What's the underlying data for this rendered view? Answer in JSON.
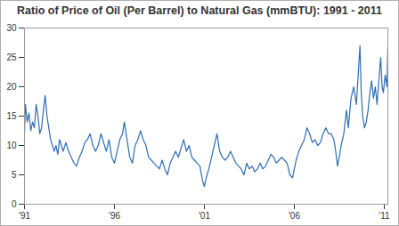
{
  "chart_data": {
    "type": "line",
    "title": "Ratio of Price of Oil (Per Barrel) to Natural Gas (mmBTU): 1991 - 2011",
    "color": "#2e6db4",
    "grid": false,
    "xlim": [
      1991,
      2011.2
    ],
    "ylim": [
      0,
      30
    ],
    "xticks": [
      {
        "value": 1991,
        "label": "'91"
      },
      {
        "value": 1996,
        "label": "'96"
      },
      {
        "value": 2001,
        "label": "'01"
      },
      {
        "value": 2006,
        "label": "'06"
      },
      {
        "value": 2011,
        "label": "'11"
      }
    ],
    "yticks": [
      0,
      5,
      10,
      15,
      20,
      25,
      30
    ],
    "x": [
      1991.0,
      1991.05,
      1991.15,
      1991.25,
      1991.35,
      1991.45,
      1991.55,
      1991.65,
      1991.75,
      1991.85,
      1991.95,
      1992.05,
      1992.15,
      1992.25,
      1992.35,
      1992.45,
      1992.55,
      1992.65,
      1992.75,
      1992.85,
      1992.95,
      1993.05,
      1993.15,
      1993.3,
      1993.45,
      1993.6,
      1993.75,
      1993.9,
      1994.05,
      1994.2,
      1994.35,
      1994.5,
      1994.65,
      1994.8,
      1994.95,
      1995.1,
      1995.25,
      1995.4,
      1995.55,
      1995.7,
      1995.85,
      1996.0,
      1996.15,
      1996.3,
      1996.45,
      1996.55,
      1996.7,
      1996.85,
      1997.0,
      1997.15,
      1997.3,
      1997.45,
      1997.6,
      1997.75,
      1997.9,
      1998.05,
      1998.2,
      1998.35,
      1998.5,
      1998.65,
      1998.8,
      1998.95,
      1999.1,
      1999.25,
      1999.4,
      1999.55,
      1999.7,
      1999.85,
      2000.0,
      2000.15,
      2000.3,
      2000.45,
      2000.6,
      2000.75,
      2000.9,
      2001.0,
      2001.1,
      2001.25,
      2001.4,
      2001.55,
      2001.7,
      2001.85,
      2002.0,
      2002.15,
      2002.3,
      2002.45,
      2002.6,
      2002.75,
      2002.9,
      2003.05,
      2003.2,
      2003.35,
      2003.5,
      2003.65,
      2003.8,
      2003.95,
      2004.1,
      2004.25,
      2004.4,
      2004.55,
      2004.7,
      2004.85,
      2005.0,
      2005.15,
      2005.3,
      2005.45,
      2005.6,
      2005.75,
      2005.9,
      2006.0,
      2006.1,
      2006.25,
      2006.4,
      2006.55,
      2006.7,
      2006.85,
      2007.0,
      2007.15,
      2007.3,
      2007.45,
      2007.6,
      2007.75,
      2007.9,
      2008.05,
      2008.2,
      2008.3,
      2008.4,
      2008.5,
      2008.6,
      2008.75,
      2008.9,
      2009.0,
      2009.15,
      2009.3,
      2009.45,
      2009.55,
      2009.65,
      2009.72,
      2009.8,
      2009.9,
      2010.0,
      2010.1,
      2010.2,
      2010.3,
      2010.4,
      2010.5,
      2010.6,
      2010.7,
      2010.8,
      2010.88,
      2010.95,
      2011.05,
      2011.15,
      2011.2
    ],
    "values": [
      12,
      17,
      14,
      15.5,
      12.5,
      14,
      13,
      17,
      15,
      12,
      13,
      16,
      18.5,
      15,
      13,
      11,
      10,
      9,
      10,
      8.5,
      11,
      10,
      9,
      10.5,
      9,
      8,
      7,
      6.5,
      8,
      9,
      10.5,
      11,
      12,
      10,
      9,
      10,
      12,
      10.5,
      9,
      11,
      8,
      7,
      9,
      11,
      12,
      14,
      11,
      8,
      7,
      10,
      11,
      12.5,
      11,
      10,
      8,
      7.5,
      7,
      6.5,
      6,
      7.5,
      6,
      5,
      7,
      8,
      9,
      8,
      9.5,
      11,
      9,
      10,
      8,
      7.5,
      7,
      6.5,
      4,
      3,
      4.5,
      6,
      8,
      10,
      12,
      9,
      8,
      7.5,
      8,
      9,
      8,
      7,
      6.5,
      6,
      5,
      7,
      6,
      6.5,
      5.5,
      6,
      7,
      6,
      6.5,
      7.5,
      8.5,
      8,
      7,
      7.5,
      8,
      7.5,
      7,
      5,
      4.5,
      6,
      7.5,
      9,
      10,
      11,
      13,
      12,
      10.5,
      11,
      10,
      10.5,
      12,
      13,
      12,
      12,
      11,
      9,
      6.5,
      8,
      10,
      12,
      16,
      13,
      18,
      20,
      17,
      22,
      27,
      19,
      15,
      13,
      14,
      16,
      19,
      21,
      18,
      20,
      17,
      21,
      25,
      20,
      19,
      22,
      20,
      27
    ]
  }
}
